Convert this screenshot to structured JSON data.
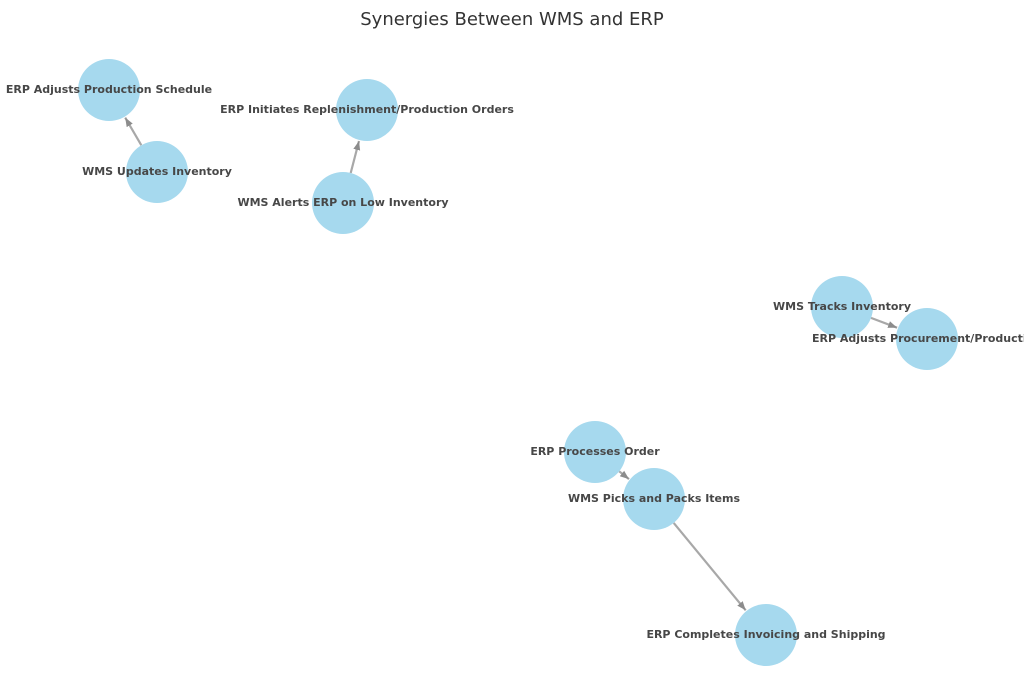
{
  "title": "Synergies Between WMS and ERP",
  "colors": {
    "node_fill": "#a6d9ee",
    "edge": "#a8a8a8",
    "label_text": "#474747",
    "title_text": "#333333"
  },
  "nodes": [
    {
      "id": "n1",
      "label": "ERP Adjusts Production Schedule"
    },
    {
      "id": "n2",
      "label": "WMS Updates Inventory"
    },
    {
      "id": "n3",
      "label": "ERP Initiates Replenishment/Production Orders"
    },
    {
      "id": "n4",
      "label": "WMS Alerts ERP on Low Inventory"
    },
    {
      "id": "n5",
      "label": "WMS Tracks Inventory"
    },
    {
      "id": "n6",
      "label": "ERP Adjusts Procurement/Production"
    },
    {
      "id": "n7",
      "label": "ERP Processes Order"
    },
    {
      "id": "n8",
      "label": "WMS Picks and Packs Items"
    },
    {
      "id": "n9",
      "label": "ERP Completes Invoicing and Shipping"
    }
  ],
  "edges": [
    {
      "from": "n2",
      "to": "n1"
    },
    {
      "from": "n4",
      "to": "n3"
    },
    {
      "from": "n5",
      "to": "n6"
    },
    {
      "from": "n7",
      "to": "n8"
    },
    {
      "from": "n8",
      "to": "n9"
    }
  ]
}
